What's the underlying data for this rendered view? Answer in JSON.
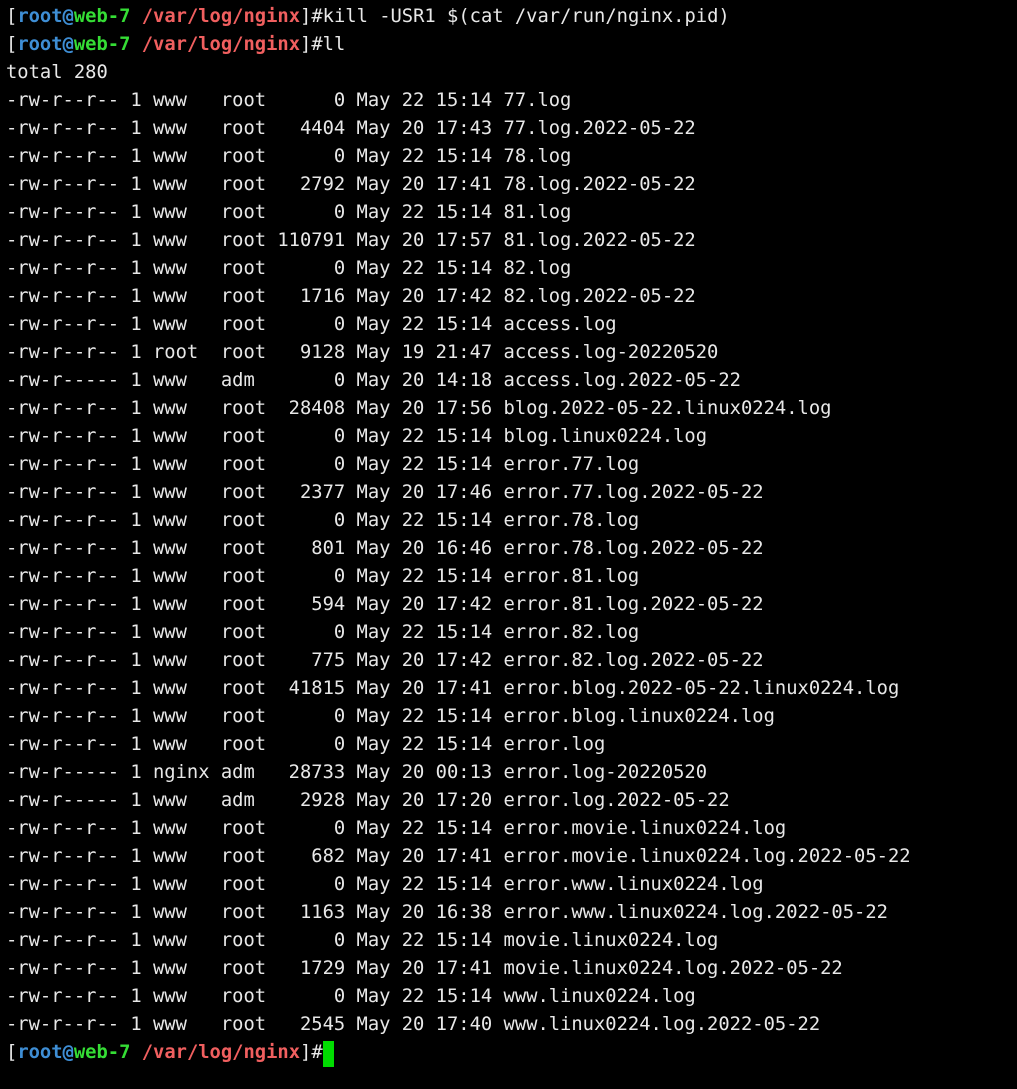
{
  "terminal": {
    "colors": {
      "background": "#000000",
      "foreground": "#e8e8e8",
      "prompt_user": "#3e8ed5",
      "prompt_host": "#35dd35",
      "prompt_path": "#f05f5f",
      "cursor": "#00dc00"
    },
    "prompt": {
      "bracket_open": "[",
      "user": "root@",
      "host": "web-7",
      "space": " ",
      "path": "/var/log/nginx",
      "suffix": "]#"
    },
    "commands": {
      "first": "kill -USR1 $(cat /var/run/nginx.pid)",
      "second": "ll"
    },
    "listing": {
      "total_line": "total 280",
      "column_widths": {
        "owner": 5,
        "group": 4,
        "size": 6
      },
      "rows": [
        {
          "perms": "-rw-r--r--",
          "links": 1,
          "owner": "www",
          "group": "root",
          "size": 0,
          "month": "May",
          "day": "22",
          "time": "15:14",
          "name": "77.log"
        },
        {
          "perms": "-rw-r--r--",
          "links": 1,
          "owner": "www",
          "group": "root",
          "size": 4404,
          "month": "May",
          "day": "20",
          "time": "17:43",
          "name": "77.log.2022-05-22"
        },
        {
          "perms": "-rw-r--r--",
          "links": 1,
          "owner": "www",
          "group": "root",
          "size": 0,
          "month": "May",
          "day": "22",
          "time": "15:14",
          "name": "78.log"
        },
        {
          "perms": "-rw-r--r--",
          "links": 1,
          "owner": "www",
          "group": "root",
          "size": 2792,
          "month": "May",
          "day": "20",
          "time": "17:41",
          "name": "78.log.2022-05-22"
        },
        {
          "perms": "-rw-r--r--",
          "links": 1,
          "owner": "www",
          "group": "root",
          "size": 0,
          "month": "May",
          "day": "22",
          "time": "15:14",
          "name": "81.log"
        },
        {
          "perms": "-rw-r--r--",
          "links": 1,
          "owner": "www",
          "group": "root",
          "size": 110791,
          "month": "May",
          "day": "20",
          "time": "17:57",
          "name": "81.log.2022-05-22"
        },
        {
          "perms": "-rw-r--r--",
          "links": 1,
          "owner": "www",
          "group": "root",
          "size": 0,
          "month": "May",
          "day": "22",
          "time": "15:14",
          "name": "82.log"
        },
        {
          "perms": "-rw-r--r--",
          "links": 1,
          "owner": "www",
          "group": "root",
          "size": 1716,
          "month": "May",
          "day": "20",
          "time": "17:42",
          "name": "82.log.2022-05-22"
        },
        {
          "perms": "-rw-r--r--",
          "links": 1,
          "owner": "www",
          "group": "root",
          "size": 0,
          "month": "May",
          "day": "22",
          "time": "15:14",
          "name": "access.log"
        },
        {
          "perms": "-rw-r--r--",
          "links": 1,
          "owner": "root",
          "group": "root",
          "size": 9128,
          "month": "May",
          "day": "19",
          "time": "21:47",
          "name": "access.log-20220520"
        },
        {
          "perms": "-rw-r-----",
          "links": 1,
          "owner": "www",
          "group": "adm",
          "size": 0,
          "month": "May",
          "day": "20",
          "time": "14:18",
          "name": "access.log.2022-05-22"
        },
        {
          "perms": "-rw-r--r--",
          "links": 1,
          "owner": "www",
          "group": "root",
          "size": 28408,
          "month": "May",
          "day": "20",
          "time": "17:56",
          "name": "blog.2022-05-22.linux0224.log"
        },
        {
          "perms": "-rw-r--r--",
          "links": 1,
          "owner": "www",
          "group": "root",
          "size": 0,
          "month": "May",
          "day": "22",
          "time": "15:14",
          "name": "blog.linux0224.log"
        },
        {
          "perms": "-rw-r--r--",
          "links": 1,
          "owner": "www",
          "group": "root",
          "size": 0,
          "month": "May",
          "day": "22",
          "time": "15:14",
          "name": "error.77.log"
        },
        {
          "perms": "-rw-r--r--",
          "links": 1,
          "owner": "www",
          "group": "root",
          "size": 2377,
          "month": "May",
          "day": "20",
          "time": "17:46",
          "name": "error.77.log.2022-05-22"
        },
        {
          "perms": "-rw-r--r--",
          "links": 1,
          "owner": "www",
          "group": "root",
          "size": 0,
          "month": "May",
          "day": "22",
          "time": "15:14",
          "name": "error.78.log"
        },
        {
          "perms": "-rw-r--r--",
          "links": 1,
          "owner": "www",
          "group": "root",
          "size": 801,
          "month": "May",
          "day": "20",
          "time": "16:46",
          "name": "error.78.log.2022-05-22"
        },
        {
          "perms": "-rw-r--r--",
          "links": 1,
          "owner": "www",
          "group": "root",
          "size": 0,
          "month": "May",
          "day": "22",
          "time": "15:14",
          "name": "error.81.log"
        },
        {
          "perms": "-rw-r--r--",
          "links": 1,
          "owner": "www",
          "group": "root",
          "size": 594,
          "month": "May",
          "day": "20",
          "time": "17:42",
          "name": "error.81.log.2022-05-22"
        },
        {
          "perms": "-rw-r--r--",
          "links": 1,
          "owner": "www",
          "group": "root",
          "size": 0,
          "month": "May",
          "day": "22",
          "time": "15:14",
          "name": "error.82.log"
        },
        {
          "perms": "-rw-r--r--",
          "links": 1,
          "owner": "www",
          "group": "root",
          "size": 775,
          "month": "May",
          "day": "20",
          "time": "17:42",
          "name": "error.82.log.2022-05-22"
        },
        {
          "perms": "-rw-r--r--",
          "links": 1,
          "owner": "www",
          "group": "root",
          "size": 41815,
          "month": "May",
          "day": "20",
          "time": "17:41",
          "name": "error.blog.2022-05-22.linux0224.log"
        },
        {
          "perms": "-rw-r--r--",
          "links": 1,
          "owner": "www",
          "group": "root",
          "size": 0,
          "month": "May",
          "day": "22",
          "time": "15:14",
          "name": "error.blog.linux0224.log"
        },
        {
          "perms": "-rw-r--r--",
          "links": 1,
          "owner": "www",
          "group": "root",
          "size": 0,
          "month": "May",
          "day": "22",
          "time": "15:14",
          "name": "error.log"
        },
        {
          "perms": "-rw-r-----",
          "links": 1,
          "owner": "nginx",
          "group": "adm",
          "size": 28733,
          "month": "May",
          "day": "20",
          "time": "00:13",
          "name": "error.log-20220520"
        },
        {
          "perms": "-rw-r-----",
          "links": 1,
          "owner": "www",
          "group": "adm",
          "size": 2928,
          "month": "May",
          "day": "20",
          "time": "17:20",
          "name": "error.log.2022-05-22"
        },
        {
          "perms": "-rw-r--r--",
          "links": 1,
          "owner": "www",
          "group": "root",
          "size": 0,
          "month": "May",
          "day": "22",
          "time": "15:14",
          "name": "error.movie.linux0224.log"
        },
        {
          "perms": "-rw-r--r--",
          "links": 1,
          "owner": "www",
          "group": "root",
          "size": 682,
          "month": "May",
          "day": "20",
          "time": "17:41",
          "name": "error.movie.linux0224.log.2022-05-22"
        },
        {
          "perms": "-rw-r--r--",
          "links": 1,
          "owner": "www",
          "group": "root",
          "size": 0,
          "month": "May",
          "day": "22",
          "time": "15:14",
          "name": "error.www.linux0224.log"
        },
        {
          "perms": "-rw-r--r--",
          "links": 1,
          "owner": "www",
          "group": "root",
          "size": 1163,
          "month": "May",
          "day": "20",
          "time": "16:38",
          "name": "error.www.linux0224.log.2022-05-22"
        },
        {
          "perms": "-rw-r--r--",
          "links": 1,
          "owner": "www",
          "group": "root",
          "size": 0,
          "month": "May",
          "day": "22",
          "time": "15:14",
          "name": "movie.linux0224.log"
        },
        {
          "perms": "-rw-r--r--",
          "links": 1,
          "owner": "www",
          "group": "root",
          "size": 1729,
          "month": "May",
          "day": "20",
          "time": "17:41",
          "name": "movie.linux0224.log.2022-05-22"
        },
        {
          "perms": "-rw-r--r--",
          "links": 1,
          "owner": "www",
          "group": "root",
          "size": 0,
          "month": "May",
          "day": "22",
          "time": "15:14",
          "name": "www.linux0224.log"
        },
        {
          "perms": "-rw-r--r--",
          "links": 1,
          "owner": "www",
          "group": "root",
          "size": 2545,
          "month": "May",
          "day": "20",
          "time": "17:40",
          "name": "www.linux0224.log.2022-05-22"
        }
      ]
    }
  }
}
